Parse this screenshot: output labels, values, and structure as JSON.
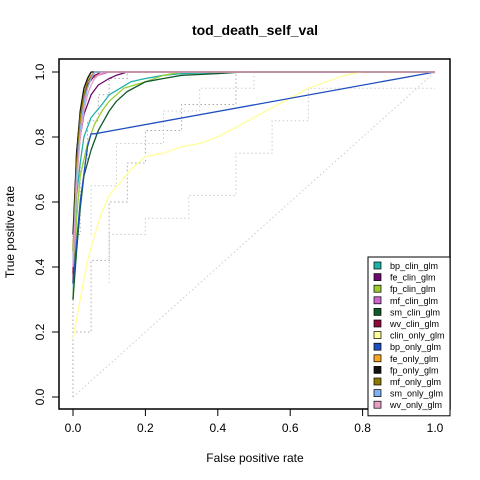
{
  "chart_data": {
    "type": "line",
    "title": "tod_death_self_val",
    "xlabel": "False positive rate",
    "ylabel": "True positive rate",
    "xlim": [
      0,
      1
    ],
    "ylim": [
      0,
      1
    ],
    "x_ticks": [
      "0.0",
      "0.2",
      "0.4",
      "0.6",
      "0.8",
      "1.0"
    ],
    "y_ticks": [
      "0.0",
      "0.2",
      "0.4",
      "0.6",
      "0.8",
      "1.0"
    ],
    "legend_position": "bottom-right",
    "reference_line": {
      "x": [
        0,
        1
      ],
      "y": [
        0,
        1
      ],
      "style": "dotted",
      "color": "#cccccc"
    },
    "series": [
      {
        "name": "bp_clin_glm",
        "color": "#20b2aa",
        "x": [
          0,
          0.005,
          0.01,
          0.02,
          0.03,
          0.05,
          0.08,
          0.1,
          0.13,
          0.16,
          0.2,
          0.25,
          0.3,
          0.4,
          0.5,
          1.0
        ],
        "y": [
          0.3,
          0.5,
          0.62,
          0.72,
          0.8,
          0.86,
          0.9,
          0.93,
          0.95,
          0.97,
          0.98,
          0.99,
          0.995,
          0.998,
          1.0,
          1.0
        ]
      },
      {
        "name": "fe_clin_glm",
        "color": "#6a0a6a",
        "x": [
          0,
          0.005,
          0.01,
          0.02,
          0.03,
          0.05,
          0.07,
          0.1,
          0.12,
          0.15,
          1.0
        ],
        "y": [
          0.35,
          0.55,
          0.68,
          0.8,
          0.87,
          0.93,
          0.96,
          0.98,
          0.99,
          1.0,
          1.0
        ]
      },
      {
        "name": "fp_clin_glm",
        "color": "#9acd32",
        "x": [
          0,
          0.01,
          0.02,
          0.04,
          0.06,
          0.08,
          0.1,
          0.14,
          0.2,
          0.25,
          0.3,
          1.0
        ],
        "y": [
          0.3,
          0.55,
          0.68,
          0.78,
          0.84,
          0.88,
          0.91,
          0.95,
          0.97,
          0.99,
          1.0,
          1.0
        ]
      },
      {
        "name": "mf_clin_glm",
        "color": "#cc66cc",
        "x": [
          0,
          0.005,
          0.01,
          0.02,
          0.03,
          0.04,
          0.05,
          0.07,
          0.1,
          1.0
        ],
        "y": [
          0.4,
          0.6,
          0.75,
          0.85,
          0.92,
          0.96,
          0.98,
          0.99,
          1.0,
          1.0
        ]
      },
      {
        "name": "sm_clin_glm",
        "color": "#0f5a2a",
        "x": [
          0,
          0.01,
          0.02,
          0.03,
          0.05,
          0.07,
          0.1,
          0.12,
          0.15,
          0.2,
          0.25,
          0.3,
          0.4,
          0.47,
          1.0
        ],
        "y": [
          0.3,
          0.45,
          0.58,
          0.68,
          0.76,
          0.82,
          0.88,
          0.91,
          0.94,
          0.97,
          0.98,
          0.99,
          0.995,
          1.0,
          1.0
        ]
      },
      {
        "name": "wv_clin_glm",
        "color": "#8b0a3a",
        "x": [
          0,
          0.005,
          0.01,
          0.02,
          0.03,
          0.04,
          0.06,
          0.08,
          1.0
        ],
        "y": [
          0.38,
          0.6,
          0.75,
          0.87,
          0.93,
          0.96,
          0.99,
          1.0,
          1.0
        ]
      },
      {
        "name": "clin_only_glm",
        "color": "#ffff99",
        "x": [
          0,
          0.02,
          0.04,
          0.06,
          0.08,
          0.1,
          0.13,
          0.16,
          0.2,
          0.25,
          0.3,
          0.35,
          0.4,
          0.45,
          0.5,
          0.55,
          0.6,
          0.65,
          0.7,
          0.75,
          0.8,
          1.0
        ],
        "y": [
          0.18,
          0.3,
          0.42,
          0.5,
          0.57,
          0.62,
          0.66,
          0.7,
          0.74,
          0.75,
          0.77,
          0.78,
          0.8,
          0.83,
          0.86,
          0.89,
          0.92,
          0.95,
          0.97,
          0.99,
          1.0,
          1.0
        ]
      },
      {
        "name": "bp_only_glm",
        "color": "#1f4fbf",
        "x": [
          0,
          0.02,
          0.04,
          0.05,
          0.06,
          1.0
        ],
        "y": [
          0.35,
          0.6,
          0.77,
          0.81,
          0.81,
          1.0
        ]
      },
      {
        "name": "fe_only_glm",
        "color": "#f5a623",
        "x": [
          0,
          0.01,
          0.02,
          0.03,
          0.04,
          0.05,
          0.06,
          1.0
        ],
        "y": [
          0.45,
          0.7,
          0.85,
          0.93,
          0.97,
          0.99,
          1.0,
          1.0
        ]
      },
      {
        "name": "fp_only_glm",
        "color": "#111111",
        "x": [
          0,
          0.01,
          0.02,
          0.03,
          0.04,
          0.05,
          1.0
        ],
        "y": [
          0.5,
          0.75,
          0.88,
          0.95,
          0.98,
          1.0,
          1.0
        ]
      },
      {
        "name": "mf_only_glm",
        "color": "#8b7a00",
        "x": [
          0,
          0.01,
          0.02,
          0.03,
          0.04,
          0.06,
          1.0
        ],
        "y": [
          0.45,
          0.72,
          0.86,
          0.93,
          0.97,
          1.0,
          1.0
        ]
      },
      {
        "name": "sm_only_glm",
        "color": "#7fb2f0",
        "x": [
          0,
          0.01,
          0.02,
          0.03,
          0.04,
          0.05,
          0.06,
          1.0
        ],
        "y": [
          0.42,
          0.68,
          0.82,
          0.9,
          0.95,
          0.98,
          1.0,
          1.0
        ]
      },
      {
        "name": "wv_only_glm",
        "color": "#e6a0c8",
        "x": [
          0,
          0.01,
          0.02,
          0.03,
          0.04,
          0.05,
          0.06,
          0.08,
          1.0
        ],
        "y": [
          0.4,
          0.65,
          0.8,
          0.88,
          0.93,
          0.96,
          0.98,
          1.0,
          1.0
        ]
      }
    ],
    "confidence_bands": [
      {
        "style": "dotted",
        "color": "#aaaaaa",
        "x": [
          0,
          0,
          0.05,
          0.05,
          0.1,
          0.1,
          0.15,
          0.15,
          0.2,
          0.2,
          0.3,
          0.3,
          0.45,
          0.45,
          1.0
        ],
        "y": [
          0,
          0.2,
          0.2,
          0.42,
          0.42,
          0.6,
          0.6,
          0.72,
          0.72,
          0.82,
          0.82,
          0.9,
          0.9,
          1.0,
          1.0
        ]
      },
      {
        "style": "dotted",
        "color": "#aaaaaa",
        "x": [
          0,
          0,
          0.02,
          0.02,
          0.04,
          0.04,
          0.07,
          0.07,
          0.1,
          0.1,
          0.15,
          0.15,
          1.0
        ],
        "y": [
          0,
          0.5,
          0.5,
          0.72,
          0.72,
          0.85,
          0.85,
          0.93,
          0.93,
          0.98,
          0.98,
          1.0,
          1.0
        ]
      },
      {
        "style": "dotted",
        "color": "#cccccc",
        "x": [
          0.1,
          0.1,
          0.2,
          0.2,
          0.32,
          0.32,
          0.45,
          0.45,
          0.55,
          0.55,
          0.65,
          0.65,
          1.0
        ],
        "y": [
          0.35,
          0.5,
          0.5,
          0.55,
          0.55,
          0.62,
          0.62,
          0.75,
          0.75,
          0.85,
          0.85,
          0.95,
          0.95
        ]
      },
      {
        "style": "dotted",
        "color": "#cccccc",
        "x": [
          0.05,
          0.05,
          0.12,
          0.12,
          0.25,
          0.25,
          0.35,
          0.35,
          0.5,
          0.5
        ],
        "y": [
          0.5,
          0.65,
          0.65,
          0.78,
          0.78,
          0.88,
          0.88,
          0.95,
          0.95,
          1.0
        ]
      }
    ]
  }
}
